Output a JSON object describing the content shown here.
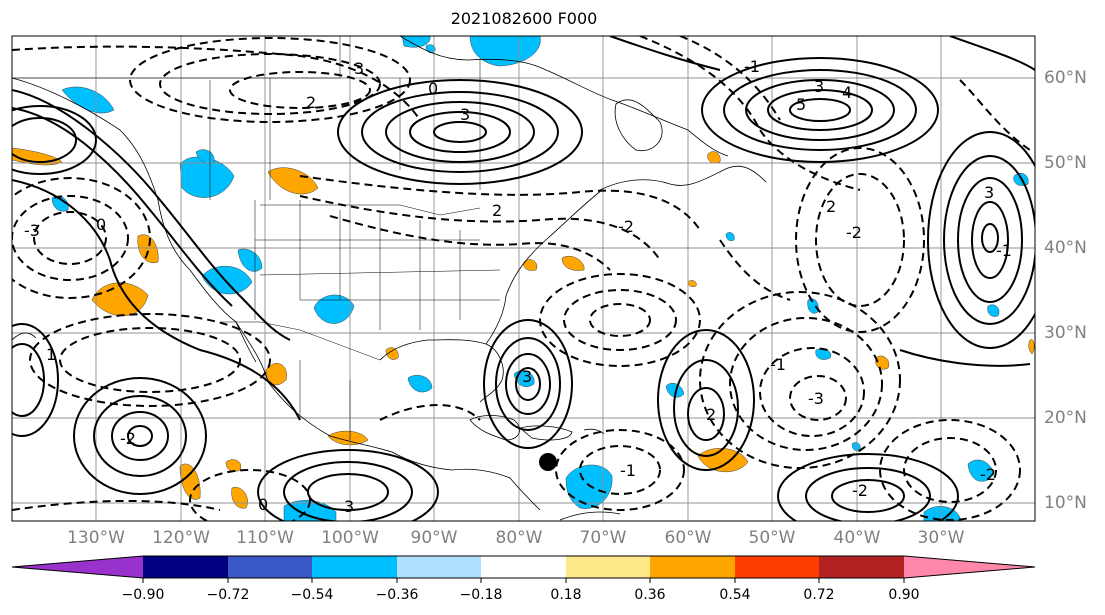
{
  "title": "2021082600 F000",
  "lon_labels": [
    "130°W",
    "120°W",
    "110°W",
    "100°W",
    "90°W",
    "80°W",
    "70°W",
    "60°W",
    "50°W",
    "40°W",
    "30°W"
  ],
  "lat_labels": [
    "60°N",
    "50°N",
    "40°N",
    "30°N",
    "20°N",
    "10°N"
  ],
  "colorbar": {
    "ticks": [
      "−0.90",
      "−0.72",
      "−0.54",
      "−0.36",
      "−0.18",
      "0.18",
      "0.36",
      "0.54",
      "0.72",
      "0.90"
    ],
    "colors": [
      "#9932cc",
      "#000080",
      "#3a57c8",
      "#00bfff",
      "#b0e0ff",
      "#ffffff",
      "#ffe88a",
      "#ffa500",
      "#ff3d00",
      "#b22222",
      "#ff88aa"
    ]
  },
  "contour_labels": [
    "3",
    "2",
    "0",
    "3",
    "5",
    "4",
    "3",
    "-1",
    "2",
    "-2",
    "3",
    "-1",
    "2",
    "-2",
    "-3",
    "2",
    "-2",
    "3",
    "1",
    "0",
    "-3",
    "-2",
    "-1",
    "3",
    "0",
    "-1",
    "-2"
  ],
  "colors": {
    "positive_shade": "#ffa500",
    "negative_shade": "#00bfff",
    "grid": "#909090",
    "marker": "#000000"
  }
}
